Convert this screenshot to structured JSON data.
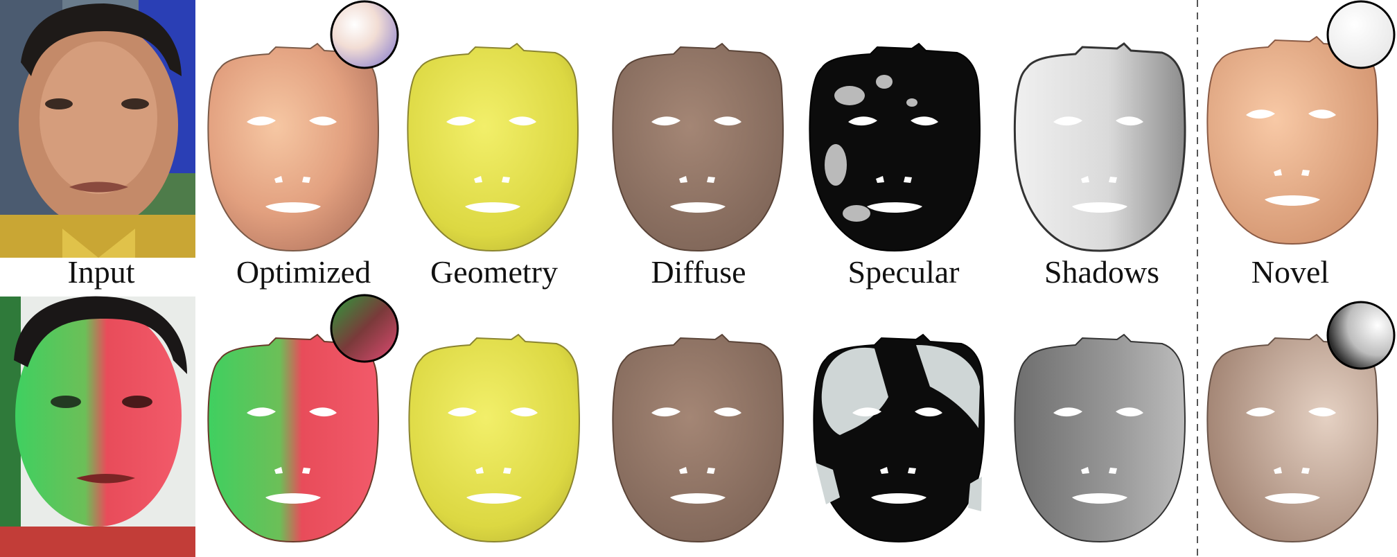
{
  "figure": {
    "column_labels": {
      "input": "Input",
      "optimized": "Optimized",
      "geometry": "Geometry",
      "diffuse": "Diffuse",
      "specular": "Specular",
      "shadows": "Shadows",
      "novel": "Novel"
    },
    "colors": {
      "geometry": "#e5e14a",
      "diffuse": "#8f7466",
      "skin_top": "#e7a888",
      "novel_top": "#efb38f",
      "novel_bottom": "#c8a996",
      "green_light": "#3fd060",
      "red_light": "#f04a5a",
      "shadow_top": "#e6e6e6",
      "shadow_bottom": "#8e8e8e",
      "specular": "#0a0a0a",
      "divider": "#555555"
    }
  }
}
